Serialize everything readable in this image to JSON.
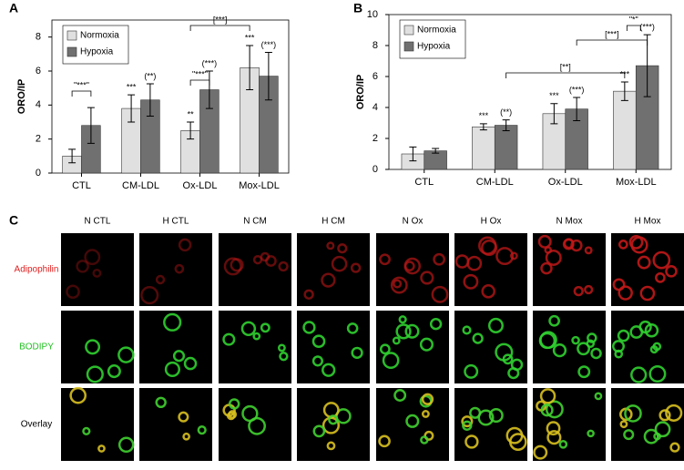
{
  "chart_data": [
    {
      "type": "bar",
      "panel": "A",
      "y_label": "ORO/IP",
      "categories": [
        "CTL",
        "CM-LDL",
        "Ox-LDL",
        "Mox-LDL"
      ],
      "ylim": [
        0,
        9
      ],
      "yticks": [
        0,
        2,
        4,
        6,
        8
      ],
      "legend": "upper left",
      "series": [
        {
          "name": "Normoxia",
          "color": "#e0e0e0",
          "values": [
            1.0,
            3.8,
            2.5,
            6.2
          ],
          "errors": [
            0.4,
            0.8,
            0.5,
            1.3
          ],
          "significance": [
            null,
            "***",
            "**",
            "***"
          ]
        },
        {
          "name": "Hypoxia",
          "color": "#707070",
          "values": [
            2.8,
            4.3,
            4.9,
            5.7
          ],
          "errors": [
            1.05,
            0.95,
            1.1,
            1.4
          ],
          "significance": [
            null,
            "(**)",
            "(***)",
            "(***)"
          ]
        }
      ],
      "brackets": [
        "\"***\"",
        "\"***\"",
        "[***]"
      ]
    },
    {
      "type": "bar",
      "panel": "B",
      "y_label": "ORO/IP",
      "categories": [
        "CTL",
        "CM-LDL",
        "Ox-LDL",
        "Mox-LDL"
      ],
      "ylim": [
        0,
        10
      ],
      "yticks": [
        0,
        2,
        4,
        6,
        8,
        10
      ],
      "legend": "upper left",
      "series": [
        {
          "name": "Normoxia",
          "color": "#e0e0e0",
          "values": [
            1.0,
            2.75,
            3.6,
            5.05
          ],
          "errors": [
            0.45,
            0.2,
            0.65,
            0.6
          ],
          "significance": [
            null,
            "***",
            "***",
            "***"
          ]
        },
        {
          "name": "Hypoxia",
          "color": "#707070",
          "values": [
            1.2,
            2.85,
            3.9,
            6.7
          ],
          "errors": [
            0.15,
            0.35,
            0.75,
            2.0
          ],
          "significance": [
            null,
            "(**)",
            "(***)",
            "(***)"
          ]
        }
      ],
      "brackets": [
        "[**]",
        "[***]",
        "\"*\""
      ]
    }
  ],
  "panel_c": {
    "label": "C",
    "columns": [
      "N CTL",
      "H CTL",
      "N CM",
      "H CM",
      "N Ox",
      "H Ox",
      "N Mox",
      "H Mox"
    ],
    "rows": [
      "Adipophilin",
      "BODIPY",
      "Overlay"
    ]
  }
}
